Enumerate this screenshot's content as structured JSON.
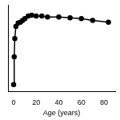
{
  "chart_data": {
    "type": "line",
    "x_label": "Age (years)",
    "x": [
      0,
      0.5,
      1,
      2,
      4,
      6,
      8,
      10,
      13,
      16,
      20,
      25,
      30,
      40,
      50,
      60,
      70,
      84
    ],
    "values": [
      8,
      40,
      61,
      75,
      79,
      80,
      82,
      84,
      87,
      88,
      87,
      87,
      86,
      86,
      85,
      84,
      82,
      80
    ],
    "color": "#000000",
    "marker": "circle",
    "line_style": "solid",
    "xlim": [
      -5,
      90
    ],
    "xticks": [
      0,
      20,
      40,
      60,
      80
    ],
    "ylim": [
      0,
      100
    ],
    "grid": false,
    "tick_labels": "x"
  }
}
